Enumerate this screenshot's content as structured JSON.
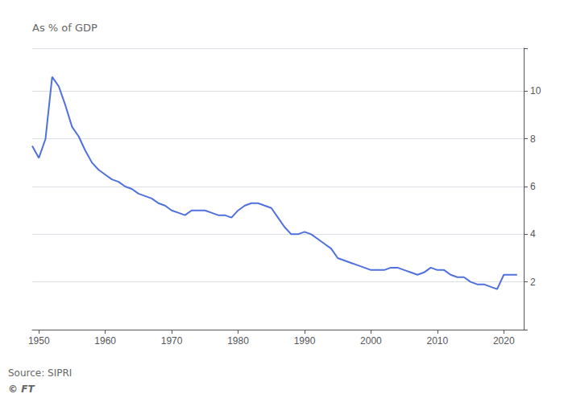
{
  "chart_data": {
    "type": "line",
    "ylabel": "As % of GDP",
    "annotations": [
      "Source: SIPRI",
      "© FT"
    ],
    "x": [
      1949,
      1950,
      1951,
      1952,
      1953,
      1954,
      1955,
      1956,
      1957,
      1958,
      1959,
      1960,
      1961,
      1962,
      1963,
      1964,
      1965,
      1966,
      1967,
      1968,
      1969,
      1970,
      1971,
      1972,
      1973,
      1974,
      1975,
      1976,
      1977,
      1978,
      1979,
      1980,
      1981,
      1982,
      1983,
      1984,
      1985,
      1986,
      1987,
      1988,
      1989,
      1990,
      1991,
      1992,
      1993,
      1994,
      1995,
      1996,
      1997,
      1998,
      1999,
      2000,
      2001,
      2002,
      2003,
      2004,
      2005,
      2006,
      2007,
      2008,
      2009,
      2010,
      2011,
      2012,
      2013,
      2014,
      2015,
      2016,
      2017,
      2018,
      2019,
      2020,
      2021,
      2022
    ],
    "values": [
      7.7,
      7.2,
      8.0,
      10.6,
      10.2,
      9.4,
      8.5,
      8.1,
      7.5,
      7.0,
      6.7,
      6.5,
      6.3,
      6.2,
      6.0,
      5.9,
      5.7,
      5.6,
      5.5,
      5.3,
      5.2,
      5.0,
      4.9,
      4.8,
      5.0,
      5.0,
      5.0,
      4.9,
      4.8,
      4.8,
      4.7,
      5.0,
      5.2,
      5.3,
      5.3,
      5.2,
      5.1,
      4.7,
      4.3,
      4.0,
      4.0,
      4.1,
      4.0,
      3.8,
      3.6,
      3.4,
      3.0,
      2.9,
      2.8,
      2.7,
      2.6,
      2.5,
      2.5,
      2.5,
      2.6,
      2.6,
      2.5,
      2.4,
      2.3,
      2.4,
      2.6,
      2.5,
      2.5,
      2.3,
      2.2,
      2.2,
      2.0,
      1.9,
      1.9,
      1.8,
      1.7,
      2.3,
      2.3,
      2.3
    ],
    "xlim": [
      1949,
      2023
    ],
    "xticks": [
      1950,
      1960,
      1970,
      1980,
      1990,
      2000,
      2010,
      2020
    ],
    "ylim": [
      0,
      11.8
    ],
    "yticks": [
      2,
      4,
      6,
      8,
      10
    ],
    "grid": true
  }
}
